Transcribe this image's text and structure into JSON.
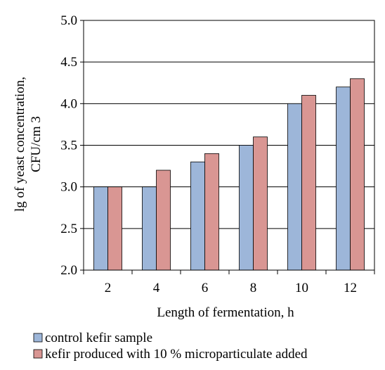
{
  "chart_data": {
    "type": "bar",
    "title": "",
    "xlabel": "Length of fermentation, h",
    "ylabel_line1": "lg  of yeast concentration,",
    "ylabel_line2": "CFU/cm 3",
    "categories": [
      "2",
      "4",
      "6",
      "8",
      "10",
      "12"
    ],
    "ylim": [
      2.0,
      5.0
    ],
    "yticks": [
      "2.0",
      "2.5",
      "3.0",
      "3.5",
      "4.0",
      "4.5",
      "5.0"
    ],
    "grid": true,
    "legend_position": "bottom",
    "series": [
      {
        "name": "control kefir sample",
        "color": "#9db6d9",
        "values": [
          3.0,
          3.0,
          3.3,
          3.5,
          4.0,
          4.2
        ]
      },
      {
        "name": "kefir produced with 10 % microparticulate added",
        "color": "#d99693",
        "values": [
          3.0,
          3.2,
          3.4,
          3.6,
          4.1,
          4.3
        ]
      }
    ]
  }
}
